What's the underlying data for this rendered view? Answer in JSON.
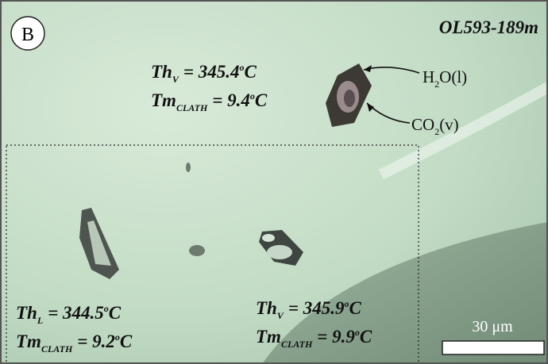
{
  "panel_label": "B",
  "sample": "OL593-189m",
  "annotations": [
    {
      "lines": [
        {
          "base": "Th",
          "sub": "V",
          "value": "= 345.4",
          "sup": "o",
          "unit": "C"
        },
        {
          "base": "Tm",
          "sub": "CLATH",
          "value": "= 9.4",
          "sup": "o",
          "unit": "C"
        }
      ]
    },
    {
      "lines": [
        {
          "base": "Th",
          "sub": "L",
          "value": "= 344.5",
          "sup": "o",
          "unit": "C"
        },
        {
          "base": "Tm",
          "sub": "CLATH",
          "value": "= 9.2",
          "sup": "o",
          "unit": "C"
        }
      ]
    },
    {
      "lines": [
        {
          "base": "Th",
          "sub": "V",
          "value": "= 345.9",
          "sup": "o",
          "unit": "C"
        },
        {
          "base": "Tm",
          "sub": "CLATH",
          "value": "= 9.9",
          "sup": "o",
          "unit": "C"
        }
      ]
    }
  ],
  "phases": [
    {
      "base": "H",
      "sub": "2",
      "rest": "O(l)"
    },
    {
      "base": "CO",
      "sub": "2",
      "rest": "(v)"
    }
  ],
  "scale_bar": "30 μm"
}
